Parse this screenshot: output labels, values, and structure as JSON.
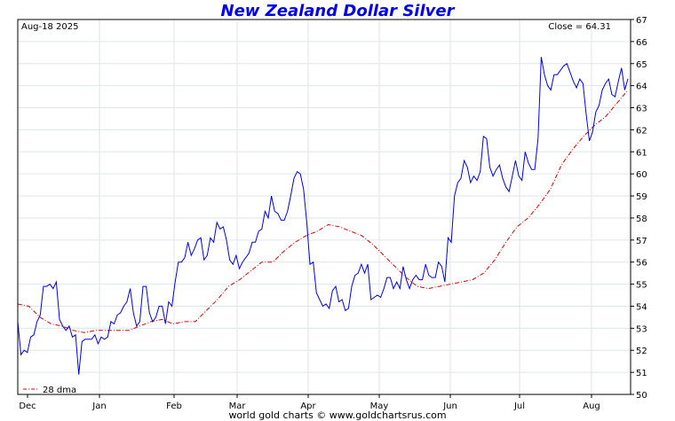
{
  "chart_data": {
    "type": "line",
    "title": "New Zealand Dollar Silver",
    "date_label": "Aug-18  2025",
    "close_label": "Close = 64.31",
    "footer": "world gold charts © www.goldchartsrus.com",
    "ylim": [
      50,
      67
    ],
    "y_ticks": [
      50,
      51,
      52,
      53,
      54,
      55,
      56,
      57,
      58,
      59,
      60,
      61,
      62,
      63,
      64,
      65,
      66,
      67
    ],
    "x_labels": [
      "Dec",
      "Jan",
      "Feb",
      "Mar",
      "Apr",
      "May",
      "Jun",
      "Jul",
      "Aug"
    ],
    "grid": true,
    "legend": {
      "position": "bottom-left",
      "label": "28 dma"
    },
    "colors": {
      "price": "#0000ee",
      "dma": "#dd0000",
      "title": "#0000ee",
      "grid": "#dde6ee"
    },
    "series": [
      {
        "name": "price",
        "values": [
          53.3,
          51.8,
          52.0,
          51.9,
          52.6,
          52.7,
          53.3,
          53.6,
          54.9,
          54.9,
          55.0,
          54.8,
          55.1,
          53.4,
          53.1,
          52.9,
          53.1,
          52.6,
          52.7,
          50.9,
          52.4,
          52.5,
          52.5,
          52.5,
          52.7,
          52.3,
          52.6,
          52.5,
          52.6,
          53.3,
          53.2,
          53.6,
          53.7,
          54.0,
          54.2,
          54.8,
          53.7,
          53.1,
          53.3,
          54.9,
          54.9,
          53.7,
          53.3,
          53.5,
          54.0,
          54.0,
          53.2,
          54.2,
          54.0,
          55.1,
          56.0,
          56.0,
          56.2,
          56.9,
          56.3,
          56.6,
          57.0,
          57.1,
          56.1,
          56.3,
          57.1,
          56.9,
          57.8,
          57.5,
          57.6,
          57.0,
          56.1,
          55.9,
          56.3,
          55.7,
          56.0,
          56.2,
          56.4,
          56.9,
          56.9,
          57.4,
          57.5,
          58.3,
          58.0,
          59.0,
          58.3,
          58.2,
          57.9,
          57.9,
          58.3,
          59.0,
          59.8,
          60.1,
          60.0,
          59.3,
          57.8,
          55.9,
          56.0,
          54.6,
          54.3,
          54.0,
          54.1,
          53.9,
          54.7,
          54.9,
          54.2,
          54.3,
          53.8,
          53.9,
          54.9,
          55.4,
          55.5,
          55.9,
          55.5,
          55.9,
          54.3,
          54.4,
          54.5,
          54.4,
          54.8,
          55.3,
          55.3,
          54.8,
          55.1,
          54.8,
          55.8,
          55.2,
          54.8,
          55.2,
          55.4,
          55.2,
          55.2,
          55.9,
          55.4,
          55.3,
          55.3,
          56.0,
          55.8,
          55.1,
          57.1,
          56.9,
          59.0,
          59.6,
          59.8,
          60.6,
          60.3,
          59.6,
          59.9,
          59.7,
          60.1,
          61.7,
          61.6,
          60.3,
          59.9,
          60.2,
          60.4,
          59.8,
          59.4,
          59.2,
          59.9,
          60.6,
          59.9,
          59.7,
          61.0,
          60.5,
          60.2,
          60.2,
          61.6,
          65.3,
          64.5,
          64.0,
          63.8,
          64.5,
          64.5,
          64.7,
          64.9,
          65.0,
          64.6,
          64.2,
          63.9,
          64.3,
          64.1,
          62.7,
          61.5,
          61.9,
          62.8,
          63.1,
          63.8,
          64.1,
          64.3,
          63.6,
          63.5,
          64.2,
          64.8,
          63.8,
          64.31
        ]
      },
      {
        "name": "28 dma",
        "values": [
          54.1,
          54.0,
          53.5,
          53.2,
          53.1,
          52.9,
          52.8,
          52.9,
          52.9,
          52.9,
          52.9,
          53.1,
          53.3,
          53.4,
          53.2,
          53.3,
          53.3,
          53.8,
          54.3,
          54.9,
          55.2,
          55.6,
          56.0,
          56.0,
          56.5,
          56.9,
          57.2,
          57.4,
          57.7,
          57.6,
          57.4,
          57.2,
          56.8,
          56.3,
          55.8,
          55.3,
          54.9,
          54.8,
          54.9,
          55.0,
          55.1,
          55.2,
          55.5,
          56.1,
          56.9,
          57.6,
          58.0,
          58.6,
          59.3,
          60.4,
          61.1,
          61.7,
          62.2,
          62.6,
          63.2,
          63.8
        ]
      }
    ]
  }
}
